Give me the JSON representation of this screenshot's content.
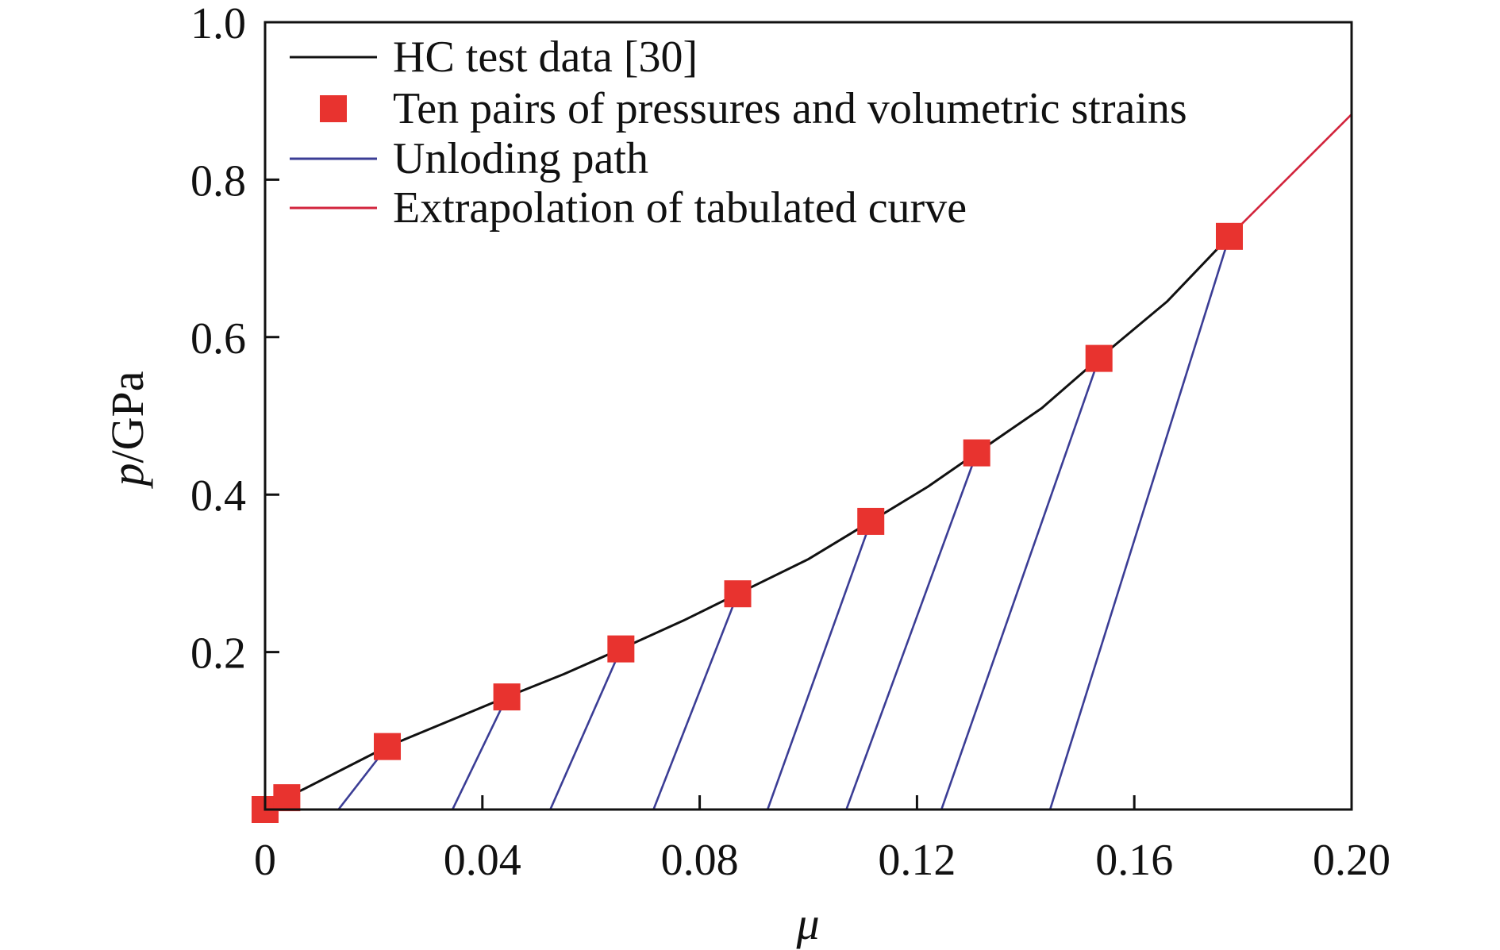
{
  "chart_data": {
    "type": "line",
    "xlabel": "μ",
    "ylabel_italic": "p",
    "ylabel_rest": "/GPa",
    "xlim": [
      0,
      0.2
    ],
    "ylim": [
      0,
      1.0
    ],
    "x_ticks": [
      0,
      0.04,
      0.08,
      0.12,
      0.16,
      0.2
    ],
    "x_tick_labels": [
      "0",
      "0.04",
      "0.08",
      "0.12",
      "0.16",
      "0.20"
    ],
    "y_ticks": [
      0.2,
      0.4,
      0.6,
      0.8,
      1.0
    ],
    "y_tick_labels": [
      "0.2",
      "0.4",
      "0.6",
      "0.8",
      "1.0"
    ],
    "grid": false,
    "legend_position": "top-left",
    "series": [
      {
        "name": "HC test data [30]",
        "kind": "line",
        "color": "#111111",
        "x": [
          0,
          0.004,
          0.0225,
          0.033,
          0.0445,
          0.055,
          0.0655,
          0.077,
          0.087,
          0.1,
          0.1115,
          0.122,
          0.131,
          0.143,
          0.1535,
          0.166,
          0.1775
        ],
        "y": [
          0,
          0.015,
          0.08,
          0.11,
          0.143,
          0.172,
          0.204,
          0.24,
          0.274,
          0.318,
          0.366,
          0.41,
          0.453,
          0.51,
          0.573,
          0.645,
          0.728
        ]
      },
      {
        "name": "Ten pairs of pressures and volumetric strains",
        "kind": "marker",
        "color": "#e8332f",
        "x": [
          0,
          0.004,
          0.0225,
          0.0445,
          0.0655,
          0.087,
          0.1115,
          0.131,
          0.1535,
          0.1775
        ],
        "y": [
          0,
          0.015,
          0.08,
          0.143,
          0.204,
          0.274,
          0.366,
          0.453,
          0.573,
          0.728
        ]
      },
      {
        "name": "Unloding path",
        "kind": "segments",
        "color": "#3b3d95",
        "segments": [
          [
            [
              0.0135,
              0
            ],
            [
              0.0225,
              0.08
            ]
          ],
          [
            [
              0.0345,
              0
            ],
            [
              0.0445,
              0.143
            ]
          ],
          [
            [
              0.0525,
              0
            ],
            [
              0.0655,
              0.204
            ]
          ],
          [
            [
              0.0715,
              0
            ],
            [
              0.087,
              0.274
            ]
          ],
          [
            [
              0.0925,
              0
            ],
            [
              0.1115,
              0.366
            ]
          ],
          [
            [
              0.107,
              0
            ],
            [
              0.131,
              0.453
            ]
          ],
          [
            [
              0.1245,
              0
            ],
            [
              0.1535,
              0.573
            ]
          ],
          [
            [
              0.1445,
              0
            ],
            [
              0.1775,
              0.728
            ]
          ]
        ]
      },
      {
        "name": "Extrapolation of tabulated curve",
        "kind": "line",
        "color": "#d2243c",
        "x": [
          0.1775,
          0.2
        ],
        "y": [
          0.728,
          0.883
        ]
      }
    ]
  }
}
